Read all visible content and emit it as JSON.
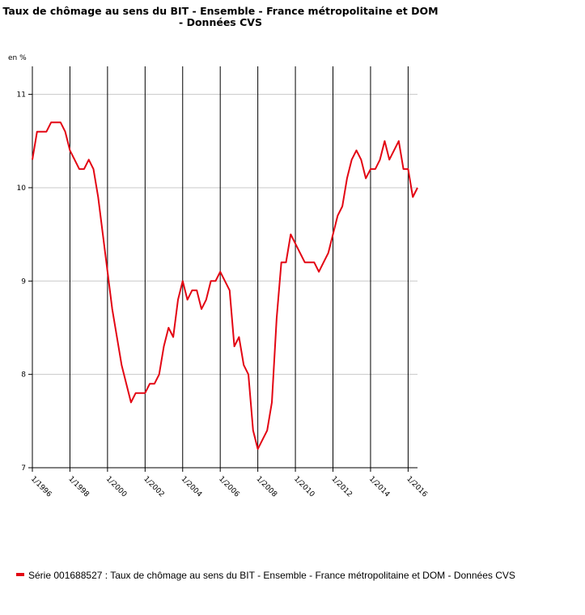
{
  "chart_data": {
    "type": "line",
    "title": "Taux de chômage au sens du BIT - Ensemble - France métropolitaine et DOM",
    "title_line2": "- Données CVS",
    "unit_label": "en %",
    "ylim": [
      7,
      11.3
    ],
    "y_ticks": [
      7,
      8,
      9,
      10,
      11
    ],
    "x_ticks": [
      "1/1996",
      "1/1998",
      "1/2000",
      "1/2002",
      "1/2004",
      "1/2006",
      "1/2008",
      "1/2010",
      "1/2012",
      "1/2014",
      "1/2016"
    ],
    "x_start_year": 1996,
    "x_end_year": 2016.5,
    "grid": true,
    "legend_position": "bottom",
    "series": [
      {
        "name": "Série 001688527 : Taux de chômage au sens du BIT - Ensemble - France métropolitaine et DOM - Données CVS",
        "color": "#e30613",
        "x": [
          1996.0,
          1996.25,
          1996.5,
          1996.75,
          1997.0,
          1997.25,
          1997.5,
          1997.75,
          1998.0,
          1998.25,
          1998.5,
          1998.75,
          1999.0,
          1999.25,
          1999.5,
          1999.75,
          2000.0,
          2000.25,
          2000.5,
          2000.75,
          2001.0,
          2001.25,
          2001.5,
          2001.75,
          2002.0,
          2002.25,
          2002.5,
          2002.75,
          2003.0,
          2003.25,
          2003.5,
          2003.75,
          2004.0,
          2004.25,
          2004.5,
          2004.75,
          2005.0,
          2005.25,
          2005.5,
          2005.75,
          2006.0,
          2006.25,
          2006.5,
          2006.75,
          2007.0,
          2007.25,
          2007.5,
          2007.75,
          2008.0,
          2008.25,
          2008.5,
          2008.75,
          2009.0,
          2009.25,
          2009.5,
          2009.75,
          2010.0,
          2010.25,
          2010.5,
          2010.75,
          2011.0,
          2011.25,
          2011.5,
          2011.75,
          2012.0,
          2012.25,
          2012.5,
          2012.75,
          2013.0,
          2013.25,
          2013.5,
          2013.75,
          2014.0,
          2014.25,
          2014.5,
          2014.75,
          2015.0,
          2015.25,
          2015.5,
          2015.75,
          2016.0,
          2016.25,
          2016.5
        ],
        "values": [
          10.3,
          10.6,
          10.6,
          10.6,
          10.7,
          10.7,
          10.7,
          10.6,
          10.4,
          10.3,
          10.2,
          10.2,
          10.3,
          10.2,
          9.9,
          9.5,
          9.1,
          8.7,
          8.4,
          8.1,
          7.9,
          7.7,
          7.8,
          7.8,
          7.8,
          7.9,
          7.9,
          8.0,
          8.3,
          8.5,
          8.4,
          8.8,
          9.0,
          8.8,
          8.9,
          8.9,
          8.7,
          8.8,
          9.0,
          9.0,
          9.1,
          9.0,
          8.9,
          8.3,
          8.4,
          8.1,
          8.0,
          7.4,
          7.2,
          7.3,
          7.4,
          7.7,
          8.6,
          9.2,
          9.2,
          9.5,
          9.4,
          9.3,
          9.2,
          9.2,
          9.2,
          9.1,
          9.2,
          9.3,
          9.5,
          9.7,
          9.8,
          10.1,
          10.3,
          10.4,
          10.3,
          10.1,
          10.2,
          10.2,
          10.3,
          10.5,
          10.3,
          10.4,
          10.5,
          10.2,
          10.2,
          9.9,
          10.0
        ]
      }
    ]
  }
}
